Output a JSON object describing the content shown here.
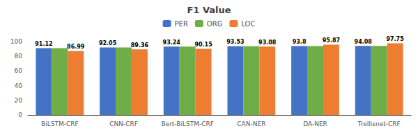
{
  "chart_data": {
    "type": "bar",
    "title": "F1 Value",
    "categories": [
      "BiLSTM-CRF",
      "CNN-CRF",
      "Bert-BiLSTM-CRF",
      "CAN-NER",
      "DA-NER",
      "Trellisnet-CRF"
    ],
    "series": [
      {
        "name": "PER",
        "color": "#4472c4",
        "values": [
          91.12,
          92.05,
          93.24,
          93.53,
          93.8,
          94.08
        ],
        "data_labels": true
      },
      {
        "name": "ORG",
        "color": "#70ad47",
        "values": [
          91.12,
          92.05,
          93.24,
          93.53,
          93.8,
          94.08
        ],
        "data_labels": false
      },
      {
        "name": "LOC",
        "color": "#ed7d31",
        "values": [
          86.99,
          89.36,
          90.15,
          93.08,
          95.87,
          97.75
        ],
        "data_labels": true
      }
    ],
    "ylim": [
      0,
      100
    ],
    "yticks": [
      0,
      20,
      40,
      60,
      80,
      100
    ],
    "grid": false,
    "legend": "top"
  }
}
